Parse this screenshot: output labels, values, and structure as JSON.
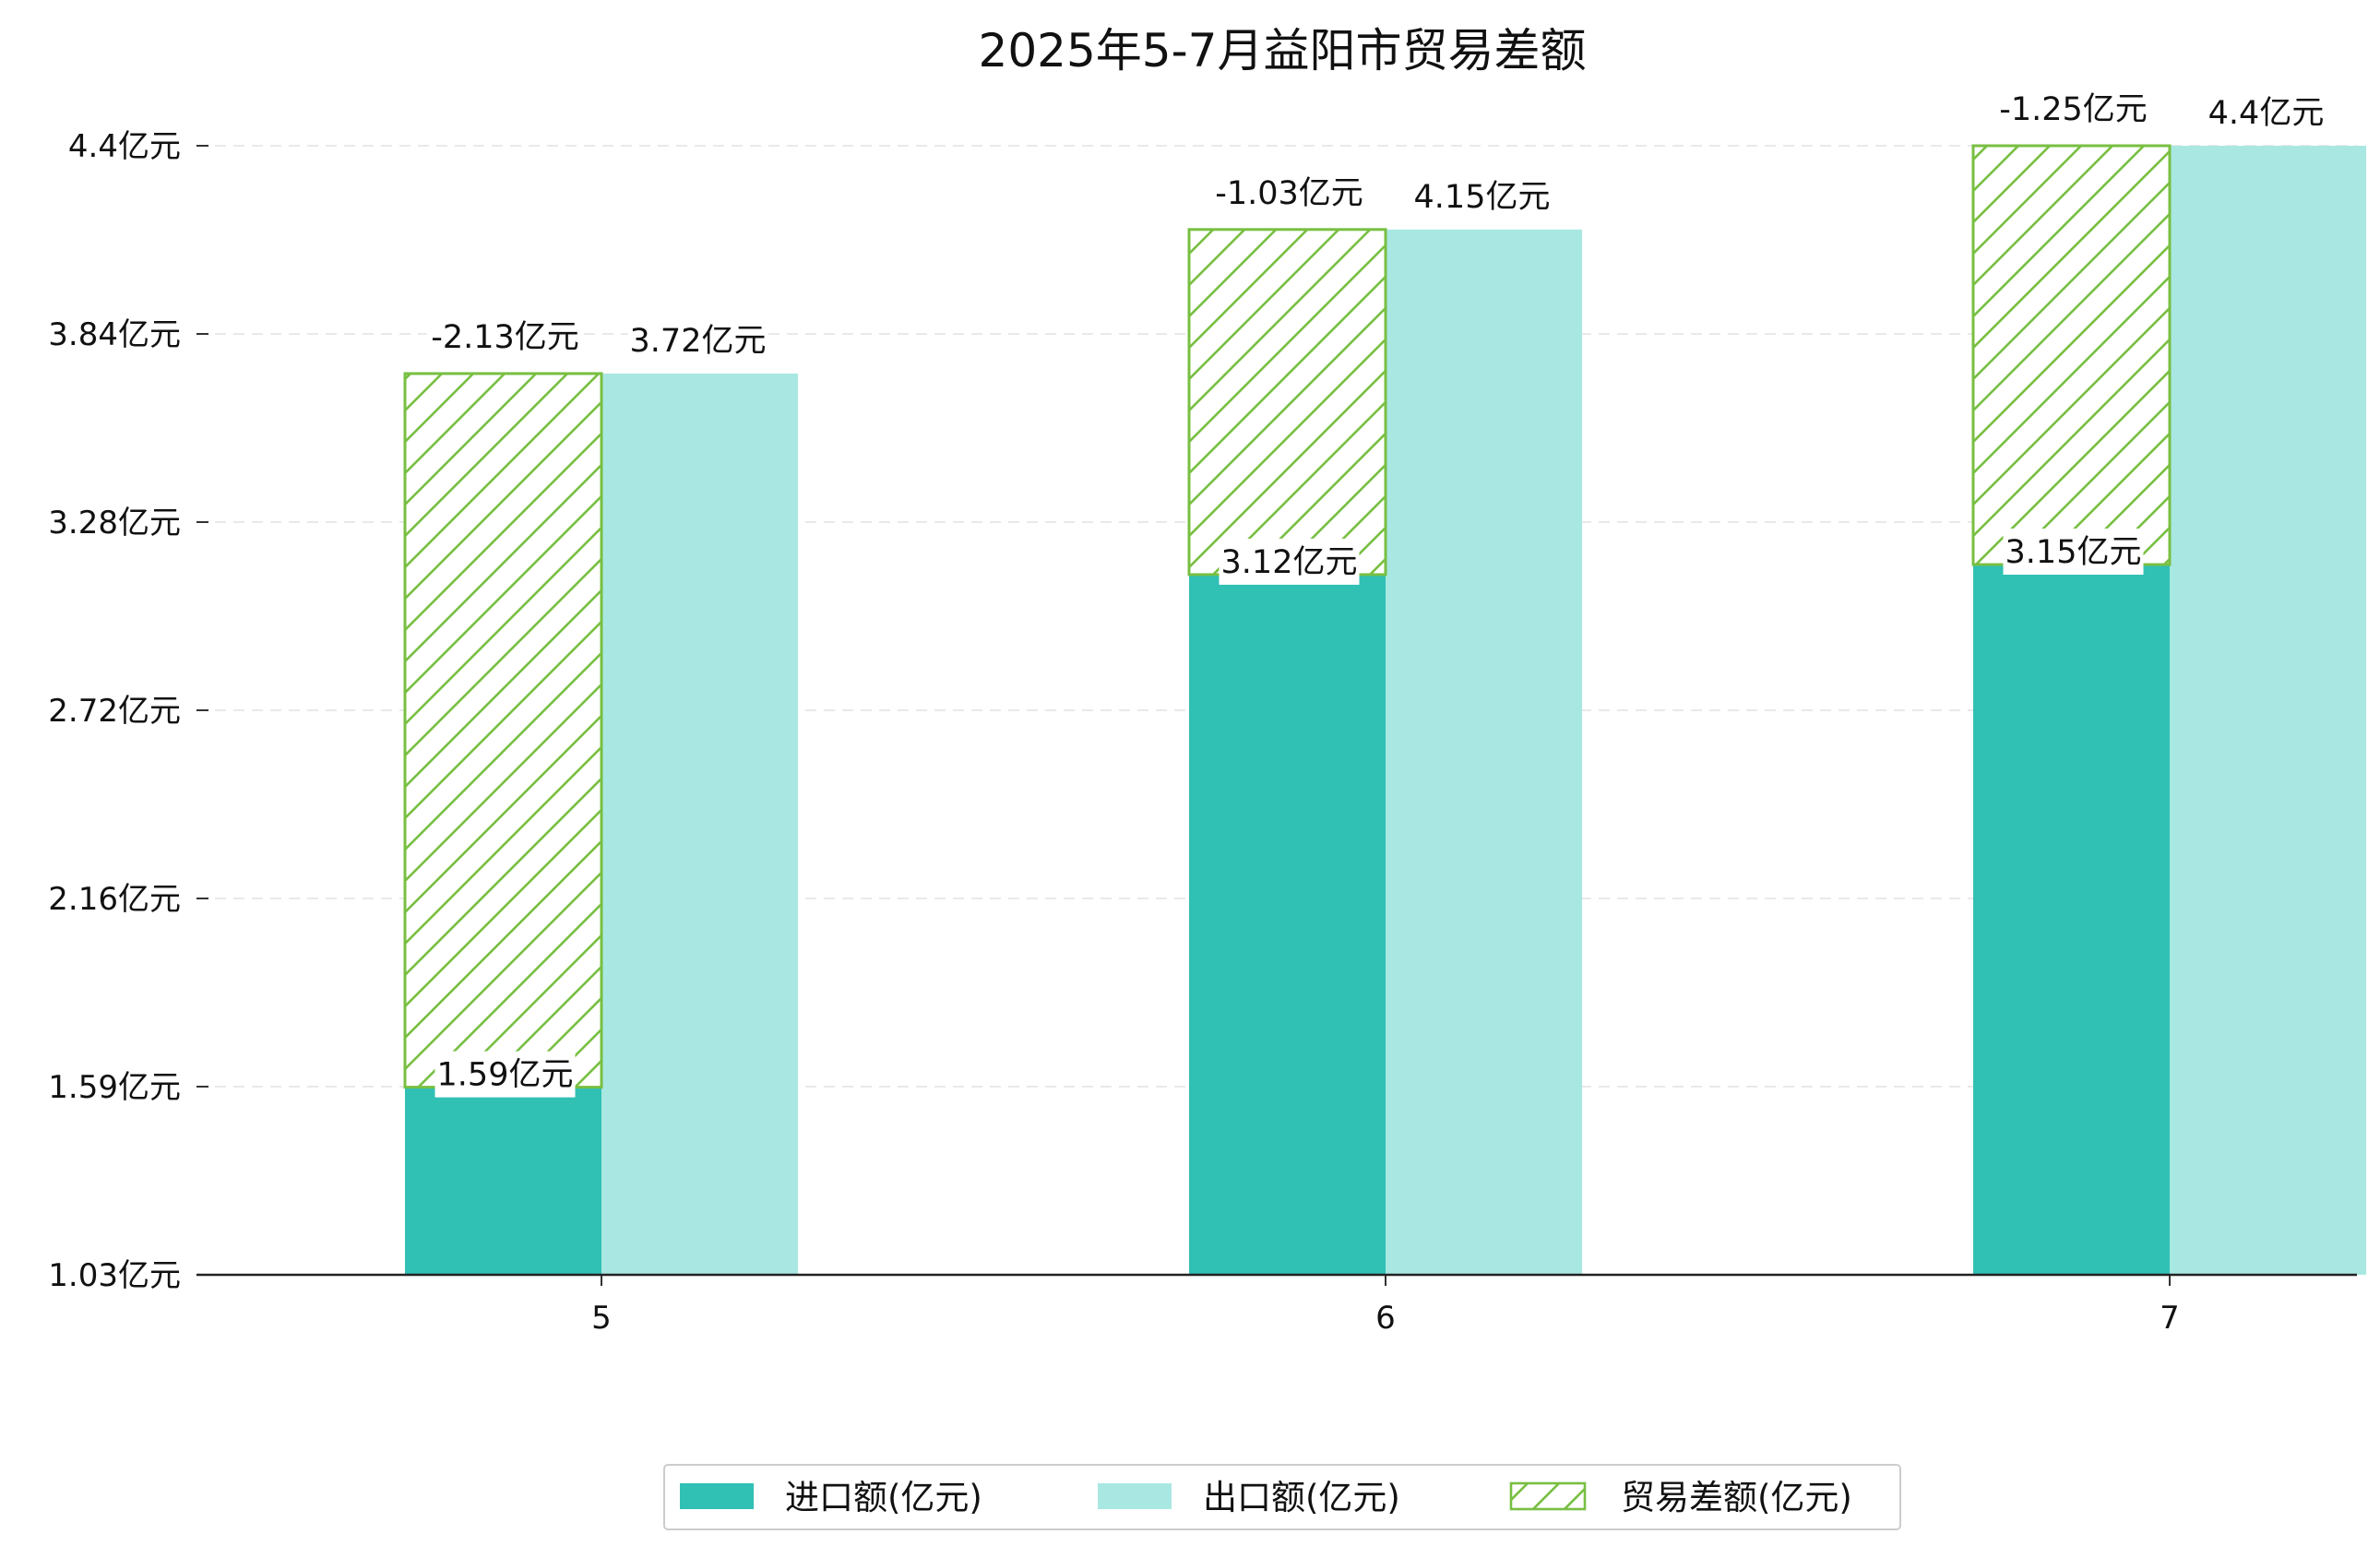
{
  "chart_data": {
    "type": "bar",
    "title": "2025年5-7月益阳市贸易差额",
    "xlabel": "",
    "ylabel": "",
    "categories": [
      "5",
      "6",
      "7"
    ],
    "yticks": [
      "1.03亿元",
      "1.59亿元",
      "2.16亿元",
      "2.72亿元",
      "3.28亿元",
      "3.84亿元",
      "4.4亿元"
    ],
    "ylim": [
      1.03,
      4.4
    ],
    "series": [
      {
        "name": "进口额(亿元)",
        "color": "#30c0b4",
        "values": [
          1.59,
          3.12,
          3.15
        ],
        "labels": [
          "1.59亿元",
          "3.12亿元",
          "3.15亿元"
        ]
      },
      {
        "name": "出口额(亿元)",
        "color": "#a9e8e2",
        "values": [
          3.72,
          4.15,
          4.4
        ],
        "labels": [
          "3.72亿元",
          "4.15亿元",
          "4.4亿元"
        ]
      },
      {
        "name": "贸易差额(亿元)",
        "color": "#78bf42",
        "pattern": "hatch",
        "values": [
          -2.13,
          -1.03,
          -1.25
        ],
        "labels": [
          "-2.13亿元",
          "-1.03亿元",
          "-1.25亿元"
        ]
      }
    ],
    "legend_position": "bottom-center",
    "grid": "horizontal-dashed"
  }
}
